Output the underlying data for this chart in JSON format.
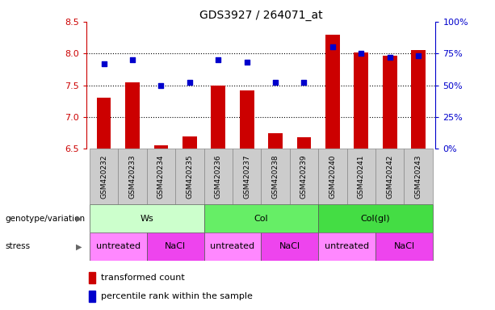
{
  "title": "GDS3927 / 264071_at",
  "samples": [
    "GSM420232",
    "GSM420233",
    "GSM420234",
    "GSM420235",
    "GSM420236",
    "GSM420237",
    "GSM420238",
    "GSM420239",
    "GSM420240",
    "GSM420241",
    "GSM420242",
    "GSM420243"
  ],
  "red_values": [
    7.3,
    7.55,
    6.55,
    6.7,
    7.5,
    7.42,
    6.75,
    6.68,
    8.3,
    8.02,
    7.97,
    8.05
  ],
  "blue_values": [
    67,
    70,
    50,
    52,
    70,
    68,
    52,
    52,
    80,
    75,
    72,
    73
  ],
  "ylim_left": [
    6.5,
    8.5
  ],
  "ylim_right": [
    0,
    100
  ],
  "yticks_left": [
    6.5,
    7.0,
    7.5,
    8.0,
    8.5
  ],
  "yticks_right": [
    0,
    25,
    50,
    75,
    100
  ],
  "ytick_labels_right": [
    "0%",
    "25%",
    "50%",
    "75%",
    "100%"
  ],
  "hlines": [
    7.0,
    7.5,
    8.0
  ],
  "genotype_groups": [
    {
      "label": "Ws",
      "start": 0,
      "end": 4,
      "color": "#ccffcc"
    },
    {
      "label": "Col",
      "start": 4,
      "end": 8,
      "color": "#66ee66"
    },
    {
      "label": "Col(gl)",
      "start": 8,
      "end": 12,
      "color": "#44dd44"
    }
  ],
  "stress_groups": [
    {
      "label": "untreated",
      "start": 0,
      "end": 2,
      "color": "#ff88ff"
    },
    {
      "label": "NaCl",
      "start": 2,
      "end": 4,
      "color": "#ee44ee"
    },
    {
      "label": "untreated",
      "start": 4,
      "end": 6,
      "color": "#ff88ff"
    },
    {
      "label": "NaCl",
      "start": 6,
      "end": 8,
      "color": "#ee44ee"
    },
    {
      "label": "untreated",
      "start": 8,
      "end": 10,
      "color": "#ff88ff"
    },
    {
      "label": "NaCl",
      "start": 10,
      "end": 12,
      "color": "#ee44ee"
    }
  ],
  "bar_width": 0.5,
  "bar_bottom": 6.5,
  "red_color": "#cc0000",
  "blue_color": "#0000cc",
  "left_axis_color": "#cc0000",
  "right_axis_color": "#0000cc",
  "label_red": "transformed count",
  "label_blue": "percentile rank within the sample",
  "genotype_label": "genotype/variation",
  "stress_label": "stress",
  "sample_bg_color": "#cccccc",
  "untreated_color": "#ff88ff",
  "nacl_color": "#dd44dd"
}
